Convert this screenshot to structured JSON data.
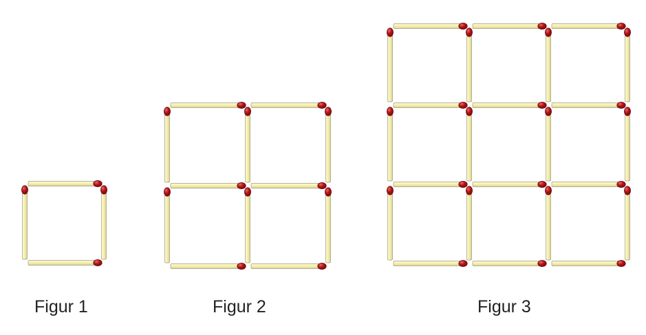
{
  "colors": {
    "stick_fill": "#f6eeaa",
    "stick_outline": "#9a9a8a",
    "head_fill": "#b3141a",
    "head_dark": "#6a0a0c",
    "head_highlight": "#ea6a66"
  },
  "figures": [
    {
      "label": "Figur 1",
      "grid_size": 1,
      "matchstick_count": 4
    },
    {
      "label": "Figur 2",
      "grid_size": 2,
      "matchstick_count": 12
    },
    {
      "label": "Figur 3",
      "grid_size": 3,
      "matchstick_count": 24
    }
  ]
}
